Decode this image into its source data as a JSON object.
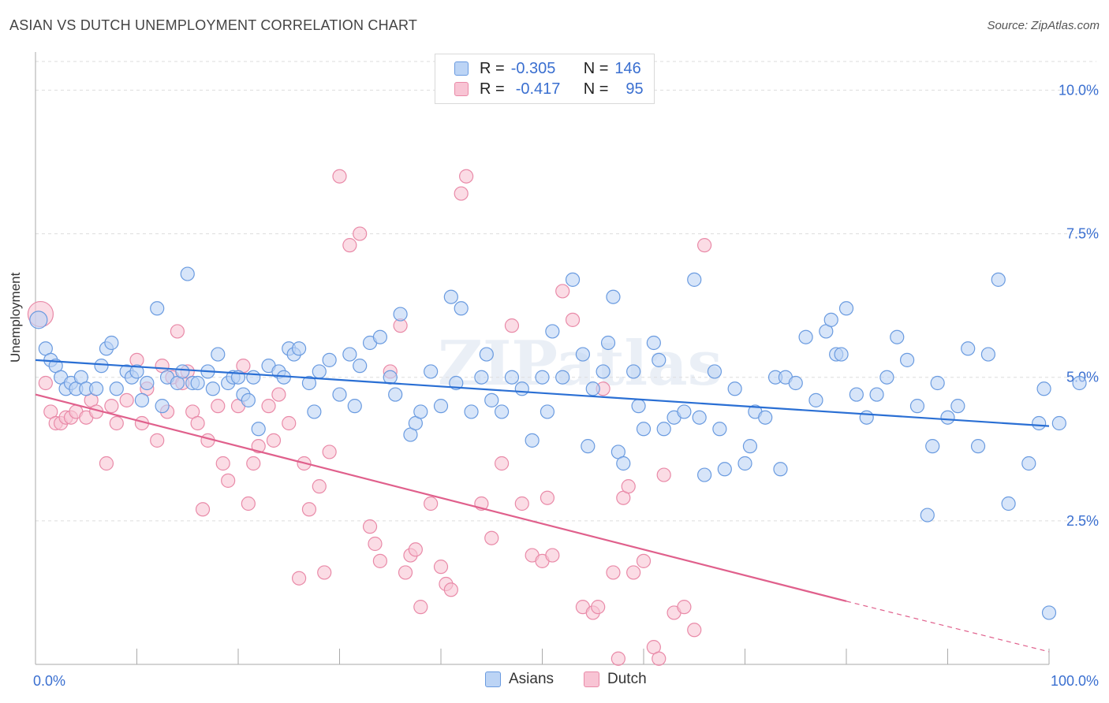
{
  "header": {
    "title": "ASIAN VS DUTCH UNEMPLOYMENT CORRELATION CHART",
    "source": "Source: ZipAtlas.com"
  },
  "stats": {
    "asian": {
      "r_label": "R =",
      "r_value": "-0.305",
      "n_label": "N =",
      "n_value": "146"
    },
    "dutch": {
      "r_label": "R =",
      "r_value": "-0.417",
      "n_label": "N =",
      "n_value": "95"
    }
  },
  "colors": {
    "asian_fill": "#bcd4f5",
    "asian_stroke": "#6a9be0",
    "asian_line": "#2a6fd4",
    "dutch_fill": "#f8c4d4",
    "dutch_stroke": "#e98aa8",
    "dutch_line": "#e0608c",
    "tick_text": "#3a6fd0",
    "grid": "#dddddd"
  },
  "chart_data": {
    "type": "scatter",
    "ylabel": "Unemployment",
    "xlim": [
      0,
      100
    ],
    "ylim": [
      0,
      10.5
    ],
    "x_ticks": [
      "0.0%",
      "100.0%"
    ],
    "y_ticks": [
      {
        "value": 2.5,
        "label": "2.5%"
      },
      {
        "value": 5.0,
        "label": "5.0%"
      },
      {
        "value": 7.5,
        "label": "7.5%"
      },
      {
        "value": 10.0,
        "label": "10.0%"
      }
    ],
    "grid": true,
    "legend_position": "top-center and bottom",
    "series": [
      {
        "name": "Asians",
        "trend": {
          "x0": 0,
          "y0": 5.3,
          "x1": 100,
          "y1": 4.15
        },
        "points": [
          [
            0.3,
            6.0
          ],
          [
            1,
            5.5
          ],
          [
            1.5,
            5.3
          ],
          [
            2,
            5.2
          ],
          [
            2.5,
            5.0
          ],
          [
            3,
            4.8
          ],
          [
            3.5,
            4.9
          ],
          [
            4,
            4.8
          ],
          [
            4.5,
            5.0
          ],
          [
            5,
            4.8
          ],
          [
            6,
            4.8
          ],
          [
            6.5,
            5.2
          ],
          [
            7,
            5.5
          ],
          [
            7.5,
            5.6
          ],
          [
            8,
            4.8
          ],
          [
            9,
            5.1
          ],
          [
            9.5,
            5.0
          ],
          [
            10,
            5.1
          ],
          [
            10.5,
            4.6
          ],
          [
            11,
            4.9
          ],
          [
            12,
            6.2
          ],
          [
            12.5,
            4.5
          ],
          [
            13,
            5.0
          ],
          [
            14,
            4.9
          ],
          [
            14.5,
            5.1
          ],
          [
            15,
            6.8
          ],
          [
            15.5,
            4.9
          ],
          [
            16,
            4.9
          ],
          [
            17,
            5.1
          ],
          [
            17.5,
            4.8
          ],
          [
            18,
            5.4
          ],
          [
            19,
            4.9
          ],
          [
            19.5,
            5.0
          ],
          [
            20,
            5.0
          ],
          [
            20.5,
            4.7
          ],
          [
            21,
            4.6
          ],
          [
            21.5,
            5.0
          ],
          [
            22,
            4.1
          ],
          [
            23,
            5.2
          ],
          [
            24,
            5.1
          ],
          [
            24.5,
            5.0
          ],
          [
            25,
            5.5
          ],
          [
            25.5,
            5.4
          ],
          [
            26,
            5.5
          ],
          [
            27,
            4.9
          ],
          [
            27.5,
            4.4
          ],
          [
            28,
            5.1
          ],
          [
            29,
            5.3
          ],
          [
            30,
            4.7
          ],
          [
            31,
            5.4
          ],
          [
            31.5,
            4.5
          ],
          [
            32,
            5.2
          ],
          [
            33,
            5.6
          ],
          [
            34,
            5.7
          ],
          [
            35,
            5.0
          ],
          [
            35.5,
            4.7
          ],
          [
            36,
            6.1
          ],
          [
            37,
            4.0
          ],
          [
            37.5,
            4.2
          ],
          [
            38,
            4.4
          ],
          [
            39,
            5.1
          ],
          [
            40,
            4.5
          ],
          [
            41,
            6.4
          ],
          [
            41.5,
            4.9
          ],
          [
            42,
            6.2
          ],
          [
            43,
            4.4
          ],
          [
            44,
            5.0
          ],
          [
            44.5,
            5.4
          ],
          [
            45,
            4.6
          ],
          [
            46,
            4.4
          ],
          [
            47,
            5.0
          ],
          [
            48,
            4.8
          ],
          [
            49,
            3.9
          ],
          [
            50,
            5.0
          ],
          [
            50.5,
            4.4
          ],
          [
            51,
            5.8
          ],
          [
            52,
            5.0
          ],
          [
            53,
            6.7
          ],
          [
            54,
            5.4
          ],
          [
            54.5,
            3.8
          ],
          [
            55,
            4.8
          ],
          [
            56,
            5.1
          ],
          [
            56.5,
            5.6
          ],
          [
            57,
            6.4
          ],
          [
            57.5,
            3.7
          ],
          [
            58,
            3.5
          ],
          [
            59,
            5.1
          ],
          [
            59.5,
            4.5
          ],
          [
            60,
            4.1
          ],
          [
            61,
            5.6
          ],
          [
            61.5,
            5.3
          ],
          [
            62,
            4.1
          ],
          [
            63,
            4.3
          ],
          [
            64,
            4.4
          ],
          [
            65,
            6.7
          ],
          [
            65.5,
            4.3
          ],
          [
            66,
            3.3
          ],
          [
            67,
            5.1
          ],
          [
            67.5,
            4.1
          ],
          [
            68,
            3.4
          ],
          [
            69,
            4.8
          ],
          [
            70,
            3.5
          ],
          [
            70.5,
            3.8
          ],
          [
            71,
            4.4
          ],
          [
            72,
            4.3
          ],
          [
            73,
            5.0
          ],
          [
            73.5,
            3.4
          ],
          [
            74,
            5.0
          ],
          [
            75,
            4.9
          ],
          [
            76,
            5.7
          ],
          [
            77,
            4.6
          ],
          [
            78,
            5.8
          ],
          [
            78.5,
            6.0
          ],
          [
            79,
            5.4
          ],
          [
            79.5,
            5.4
          ],
          [
            80,
            6.2
          ],
          [
            81,
            4.7
          ],
          [
            82,
            4.3
          ],
          [
            83,
            4.7
          ],
          [
            84,
            5.0
          ],
          [
            85,
            5.7
          ],
          [
            86,
            5.3
          ],
          [
            87,
            4.5
          ],
          [
            88,
            2.6
          ],
          [
            88.5,
            3.8
          ],
          [
            89,
            4.9
          ],
          [
            90,
            4.3
          ],
          [
            91,
            4.5
          ],
          [
            92,
            5.5
          ],
          [
            93,
            3.8
          ],
          [
            94,
            5.4
          ],
          [
            95,
            6.7
          ],
          [
            96,
            2.8
          ],
          [
            98,
            3.5
          ],
          [
            99,
            4.2
          ],
          [
            99.5,
            4.8
          ],
          [
            100,
            0.9
          ],
          [
            101,
            4.2
          ],
          [
            103,
            4.9
          ]
        ]
      },
      {
        "name": "Dutch",
        "trend": {
          "x0": 0,
          "y0": 4.7,
          "x1": 80,
          "y1": 1.1
        },
        "trend_dashed": {
          "x0": 80,
          "y0": 1.1,
          "x1": 100,
          "y1": 0.22
        },
        "points": [
          [
            0.5,
            6.1
          ],
          [
            1,
            4.9
          ],
          [
            1.5,
            4.4
          ],
          [
            2,
            4.2
          ],
          [
            2.5,
            4.2
          ],
          [
            3,
            4.3
          ],
          [
            3.5,
            4.3
          ],
          [
            4,
            4.4
          ],
          [
            5,
            4.3
          ],
          [
            5.5,
            4.6
          ],
          [
            6,
            4.4
          ],
          [
            7,
            3.5
          ],
          [
            7.5,
            4.5
          ],
          [
            8,
            4.2
          ],
          [
            9,
            4.6
          ],
          [
            10,
            5.3
          ],
          [
            10.5,
            4.2
          ],
          [
            11,
            4.8
          ],
          [
            12,
            3.9
          ],
          [
            12.5,
            5.2
          ],
          [
            13,
            4.4
          ],
          [
            13.5,
            5.0
          ],
          [
            14,
            5.8
          ],
          [
            14.5,
            4.9
          ],
          [
            15,
            5.1
          ],
          [
            15.5,
            4.4
          ],
          [
            16,
            4.2
          ],
          [
            16.5,
            2.7
          ],
          [
            17,
            3.9
          ],
          [
            18,
            4.5
          ],
          [
            18.5,
            3.5
          ],
          [
            19,
            3.2
          ],
          [
            20,
            4.5
          ],
          [
            20.5,
            5.2
          ],
          [
            21,
            2.8
          ],
          [
            21.5,
            3.5
          ],
          [
            22,
            3.8
          ],
          [
            23,
            4.5
          ],
          [
            23.5,
            3.9
          ],
          [
            24,
            4.7
          ],
          [
            25,
            4.2
          ],
          [
            26,
            1.5
          ],
          [
            26.5,
            3.5
          ],
          [
            27,
            2.7
          ],
          [
            28,
            3.1
          ],
          [
            28.5,
            1.6
          ],
          [
            29,
            3.7
          ],
          [
            30,
            8.5
          ],
          [
            31,
            7.3
          ],
          [
            32,
            7.5
          ],
          [
            33,
            2.4
          ],
          [
            33.5,
            2.1
          ],
          [
            34,
            1.8
          ],
          [
            35,
            5.1
          ],
          [
            36,
            5.9
          ],
          [
            36.5,
            1.6
          ],
          [
            37,
            1.9
          ],
          [
            37.5,
            2.0
          ],
          [
            38,
            1.0
          ],
          [
            39,
            2.8
          ],
          [
            40,
            1.7
          ],
          [
            40.5,
            1.4
          ],
          [
            41,
            1.3
          ],
          [
            42,
            8.2
          ],
          [
            42.5,
            8.5
          ],
          [
            44,
            2.8
          ],
          [
            45,
            2.2
          ],
          [
            46,
            3.5
          ],
          [
            47,
            5.9
          ],
          [
            48,
            2.8
          ],
          [
            49,
            1.9
          ],
          [
            50,
            1.8
          ],
          [
            50.5,
            2.9
          ],
          [
            51,
            1.9
          ],
          [
            52,
            6.5
          ],
          [
            53,
            6.0
          ],
          [
            54,
            1.0
          ],
          [
            55,
            0.9
          ],
          [
            55.5,
            1.0
          ],
          [
            56,
            4.8
          ],
          [
            57,
            1.6
          ],
          [
            57.5,
            0.1
          ],
          [
            58,
            2.9
          ],
          [
            58.5,
            3.1
          ],
          [
            59,
            1.6
          ],
          [
            60,
            1.8
          ],
          [
            61,
            0.3
          ],
          [
            61.5,
            0.1
          ],
          [
            62,
            3.3
          ],
          [
            63,
            0.9
          ],
          [
            64,
            1.0
          ],
          [
            65,
            0.6
          ],
          [
            66,
            7.3
          ]
        ]
      }
    ]
  },
  "bottom_legend": {
    "asian": "Asians",
    "dutch": "Dutch"
  },
  "watermark": "ZIPatlas"
}
